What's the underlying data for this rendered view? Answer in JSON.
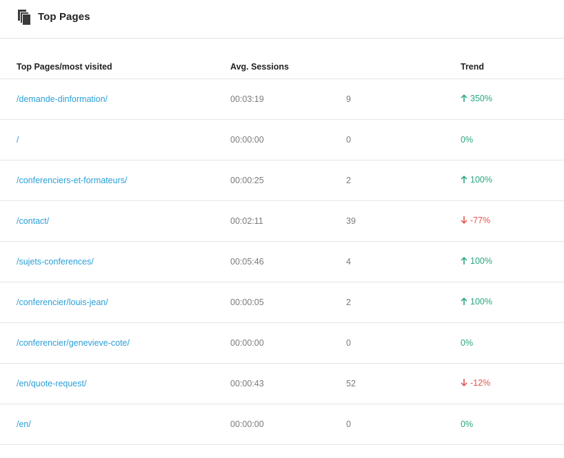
{
  "header": {
    "title": "Top Pages",
    "icon": "pages-icon"
  },
  "table": {
    "columns": [
      "Top Pages/most visited",
      "Avg. Sessions",
      "",
      "Trend"
    ],
    "rows": [
      {
        "page": "/demande-dinformation/",
        "avg_sessions": "00:03:19",
        "count": "9",
        "trend": "350%",
        "direction": "up"
      },
      {
        "page": "/",
        "avg_sessions": "00:00:00",
        "count": "0",
        "trend": "0%",
        "direction": "flat"
      },
      {
        "page": "/conferenciers-et-formateurs/",
        "avg_sessions": "00:00:25",
        "count": "2",
        "trend": "100%",
        "direction": "up"
      },
      {
        "page": "/contact/",
        "avg_sessions": "00:02:11",
        "count": "39",
        "trend": "-77%",
        "direction": "down"
      },
      {
        "page": "/sujets-conferences/",
        "avg_sessions": "00:05:46",
        "count": "4",
        "trend": "100%",
        "direction": "up"
      },
      {
        "page": "/conferencier/louis-jean/",
        "avg_sessions": "00:00:05",
        "count": "2",
        "trend": "100%",
        "direction": "up"
      },
      {
        "page": "/conferencier/genevieve-cote/",
        "avg_sessions": "00:00:00",
        "count": "0",
        "trend": "0%",
        "direction": "flat"
      },
      {
        "page": "/en/quote-request/",
        "avg_sessions": "00:00:43",
        "count": "52",
        "trend": "-12%",
        "direction": "down"
      },
      {
        "page": "/en/",
        "avg_sessions": "00:00:00",
        "count": "0",
        "trend": "0%",
        "direction": "flat"
      }
    ]
  },
  "colors": {
    "link": "#2a9fd8",
    "up": "#27a680",
    "down": "#e5534b",
    "muted": "#7a7a7a"
  }
}
